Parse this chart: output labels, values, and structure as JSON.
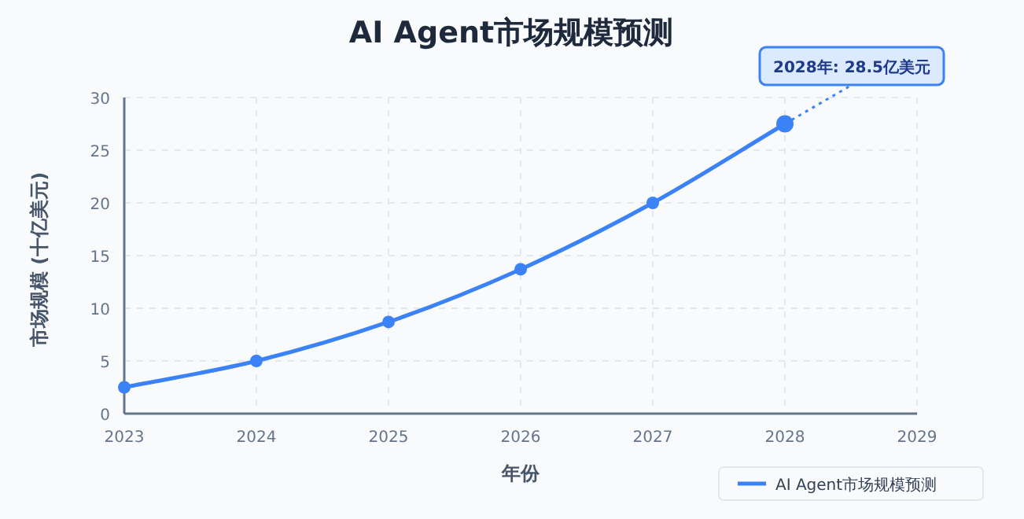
{
  "chart_data": {
    "type": "line",
    "title": "AI Agent市场规模预测",
    "xlabel": "年份",
    "ylabel": "市场规模 (十亿美元)",
    "x": [
      2023,
      2024,
      2025,
      2026,
      2027,
      2028
    ],
    "series": [
      {
        "name": "AI Agent市场规模预测",
        "color": "#3b82f6",
        "values": [
          2.5,
          5.0,
          8.7,
          13.7,
          20.0,
          27.5
        ]
      }
    ],
    "xlim": [
      2023,
      2029
    ],
    "xticks": [
      2023,
      2024,
      2025,
      2026,
      2027,
      2028,
      2029
    ],
    "ylim": [
      0,
      30
    ],
    "yticks": [
      0,
      5,
      10,
      15,
      20,
      25,
      30
    ],
    "grid": true,
    "legend": "bottom right",
    "marker": "circle",
    "annotations": [
      {
        "text": "2028年: 28.5亿美元",
        "x": 2028,
        "y": 27.5
      }
    ]
  }
}
